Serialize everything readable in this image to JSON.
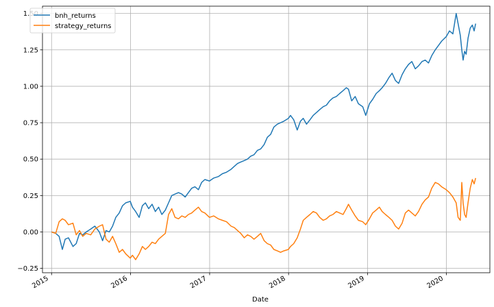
{
  "chart_data": {
    "type": "line",
    "title": "",
    "xlabel": "Date",
    "ylabel": "",
    "xlim": [
      "2014-11-20",
      "2020-07-20"
    ],
    "ylim": [
      -0.28,
      1.55
    ],
    "grid": true,
    "legend_position": "top-left",
    "x_ticks": [
      "2015",
      "2016",
      "2017",
      "2018",
      "2019",
      "2020"
    ],
    "y_ticks": [
      -0.25,
      0.0,
      0.25,
      0.5,
      0.75,
      1.0,
      1.25,
      1.5
    ],
    "y_tick_labels": [
      "−0.25",
      "0.00",
      "0.25",
      "0.50",
      "0.75",
      "1.00",
      "1.25",
      "1.50"
    ],
    "series": [
      {
        "name": "bnh_returns",
        "color": "#1f77b4",
        "points": [
          [
            "2015-01-01",
            0.0
          ],
          [
            "2015-01-20",
            -0.01
          ],
          [
            "2015-02-05",
            -0.03
          ],
          [
            "2015-02-20",
            -0.12
          ],
          [
            "2015-03-05",
            -0.05
          ],
          [
            "2015-03-20",
            -0.04
          ],
          [
            "2015-04-10",
            -0.1
          ],
          [
            "2015-04-25",
            -0.08
          ],
          [
            "2015-05-10",
            -0.01
          ],
          [
            "2015-05-25",
            -0.02
          ],
          [
            "2015-06-10",
            0.0
          ],
          [
            "2015-07-01",
            0.02
          ],
          [
            "2015-07-20",
            0.04
          ],
          [
            "2015-08-10",
            0.0
          ],
          [
            "2015-08-25",
            -0.06
          ],
          [
            "2015-09-10",
            0.01
          ],
          [
            "2015-09-25",
            0.0
          ],
          [
            "2015-10-10",
            0.04
          ],
          [
            "2015-10-25",
            0.1
          ],
          [
            "2015-11-10",
            0.13
          ],
          [
            "2015-11-25",
            0.18
          ],
          [
            "2015-12-10",
            0.2
          ],
          [
            "2015-12-31",
            0.21
          ],
          [
            "2016-01-10",
            0.17
          ],
          [
            "2016-01-25",
            0.14
          ],
          [
            "2016-02-10",
            0.1
          ],
          [
            "2016-02-25",
            0.18
          ],
          [
            "2016-03-10",
            0.2
          ],
          [
            "2016-03-25",
            0.16
          ],
          [
            "2016-04-10",
            0.19
          ],
          [
            "2016-04-25",
            0.14
          ],
          [
            "2016-05-10",
            0.17
          ],
          [
            "2016-05-25",
            0.12
          ],
          [
            "2016-06-10",
            0.15
          ],
          [
            "2016-06-25",
            0.2
          ],
          [
            "2016-07-10",
            0.25
          ],
          [
            "2016-07-25",
            0.26
          ],
          [
            "2016-08-10",
            0.27
          ],
          [
            "2016-08-25",
            0.26
          ],
          [
            "2016-09-10",
            0.24
          ],
          [
            "2016-09-25",
            0.27
          ],
          [
            "2016-10-10",
            0.3
          ],
          [
            "2016-10-25",
            0.31
          ],
          [
            "2016-11-10",
            0.29
          ],
          [
            "2016-11-25",
            0.34
          ],
          [
            "2016-12-10",
            0.36
          ],
          [
            "2016-12-31",
            0.35
          ],
          [
            "2017-01-20",
            0.37
          ],
          [
            "2017-02-10",
            0.38
          ],
          [
            "2017-03-01",
            0.4
          ],
          [
            "2017-03-20",
            0.41
          ],
          [
            "2017-04-10",
            0.43
          ],
          [
            "2017-04-25",
            0.45
          ],
          [
            "2017-05-10",
            0.47
          ],
          [
            "2017-05-25",
            0.48
          ],
          [
            "2017-06-10",
            0.49
          ],
          [
            "2017-06-25",
            0.5
          ],
          [
            "2017-07-10",
            0.52
          ],
          [
            "2017-07-25",
            0.53
          ],
          [
            "2017-08-10",
            0.56
          ],
          [
            "2017-08-25",
            0.57
          ],
          [
            "2017-09-10",
            0.6
          ],
          [
            "2017-09-25",
            0.65
          ],
          [
            "2017-10-10",
            0.67
          ],
          [
            "2017-10-25",
            0.72
          ],
          [
            "2017-11-10",
            0.74
          ],
          [
            "2017-11-25",
            0.75
          ],
          [
            "2017-12-10",
            0.76
          ],
          [
            "2017-12-31",
            0.78
          ],
          [
            "2018-01-10",
            0.8
          ],
          [
            "2018-01-25",
            0.77
          ],
          [
            "2018-02-10",
            0.7
          ],
          [
            "2018-02-25",
            0.76
          ],
          [
            "2018-03-10",
            0.78
          ],
          [
            "2018-03-25",
            0.74
          ],
          [
            "2018-04-10",
            0.77
          ],
          [
            "2018-04-25",
            0.8
          ],
          [
            "2018-05-10",
            0.82
          ],
          [
            "2018-05-25",
            0.84
          ],
          [
            "2018-06-10",
            0.86
          ],
          [
            "2018-06-25",
            0.87
          ],
          [
            "2018-07-10",
            0.9
          ],
          [
            "2018-07-25",
            0.92
          ],
          [
            "2018-08-10",
            0.93
          ],
          [
            "2018-08-25",
            0.95
          ],
          [
            "2018-09-10",
            0.97
          ],
          [
            "2018-09-25",
            0.99
          ],
          [
            "2018-10-05",
            0.98
          ],
          [
            "2018-10-20",
            0.9
          ],
          [
            "2018-11-05",
            0.93
          ],
          [
            "2018-11-20",
            0.88
          ],
          [
            "2018-12-10",
            0.86
          ],
          [
            "2018-12-24",
            0.8
          ],
          [
            "2019-01-10",
            0.88
          ],
          [
            "2019-01-25",
            0.91
          ],
          [
            "2019-02-10",
            0.95
          ],
          [
            "2019-02-25",
            0.97
          ],
          [
            "2019-03-10",
            0.99
          ],
          [
            "2019-03-25",
            1.02
          ],
          [
            "2019-04-10",
            1.06
          ],
          [
            "2019-04-25",
            1.09
          ],
          [
            "2019-05-10",
            1.04
          ],
          [
            "2019-05-25",
            1.02
          ],
          [
            "2019-06-10",
            1.08
          ],
          [
            "2019-06-25",
            1.12
          ],
          [
            "2019-07-10",
            1.15
          ],
          [
            "2019-07-25",
            1.17
          ],
          [
            "2019-08-10",
            1.12
          ],
          [
            "2019-08-25",
            1.14
          ],
          [
            "2019-09-10",
            1.17
          ],
          [
            "2019-09-25",
            1.18
          ],
          [
            "2019-10-10",
            1.16
          ],
          [
            "2019-10-25",
            1.21
          ],
          [
            "2019-11-10",
            1.25
          ],
          [
            "2019-11-25",
            1.28
          ],
          [
            "2019-12-10",
            1.31
          ],
          [
            "2019-12-31",
            1.34
          ],
          [
            "2020-01-15",
            1.38
          ],
          [
            "2020-01-31",
            1.36
          ],
          [
            "2020-02-15",
            1.5
          ],
          [
            "2020-02-24",
            1.43
          ],
          [
            "2020-03-05",
            1.35
          ],
          [
            "2020-03-12",
            1.25
          ],
          [
            "2020-03-18",
            1.18
          ],
          [
            "2020-03-25",
            1.24
          ],
          [
            "2020-04-01",
            1.22
          ],
          [
            "2020-04-10",
            1.33
          ],
          [
            "2020-04-20",
            1.4
          ],
          [
            "2020-04-30",
            1.42
          ],
          [
            "2020-05-08",
            1.38
          ],
          [
            "2020-05-15",
            1.43
          ]
        ]
      },
      {
        "name": "strategy_returns",
        "color": "#ff7f0e",
        "points": [
          [
            "2015-01-01",
            0.0
          ],
          [
            "2015-01-20",
            -0.01
          ],
          [
            "2015-02-05",
            0.07
          ],
          [
            "2015-02-20",
            0.09
          ],
          [
            "2015-03-05",
            0.08
          ],
          [
            "2015-03-20",
            0.05
          ],
          [
            "2015-04-10",
            0.06
          ],
          [
            "2015-04-25",
            -0.02
          ],
          [
            "2015-05-10",
            0.01
          ],
          [
            "2015-05-25",
            -0.03
          ],
          [
            "2015-06-10",
            -0.01
          ],
          [
            "2015-07-01",
            -0.02
          ],
          [
            "2015-07-20",
            0.02
          ],
          [
            "2015-08-10",
            0.04
          ],
          [
            "2015-08-25",
            0.05
          ],
          [
            "2015-09-10",
            -0.05
          ],
          [
            "2015-09-25",
            -0.07
          ],
          [
            "2015-10-10",
            -0.03
          ],
          [
            "2015-10-25",
            -0.08
          ],
          [
            "2015-11-10",
            -0.14
          ],
          [
            "2015-11-25",
            -0.12
          ],
          [
            "2015-12-10",
            -0.15
          ],
          [
            "2015-12-31",
            -0.18
          ],
          [
            "2016-01-10",
            -0.16
          ],
          [
            "2016-01-25",
            -0.19
          ],
          [
            "2016-02-10",
            -0.15
          ],
          [
            "2016-02-25",
            -0.1
          ],
          [
            "2016-03-10",
            -0.12
          ],
          [
            "2016-03-25",
            -0.1
          ],
          [
            "2016-04-10",
            -0.07
          ],
          [
            "2016-04-25",
            -0.08
          ],
          [
            "2016-05-10",
            -0.05
          ],
          [
            "2016-05-25",
            -0.03
          ],
          [
            "2016-06-10",
            -0.01
          ],
          [
            "2016-06-25",
            0.12
          ],
          [
            "2016-07-10",
            0.16
          ],
          [
            "2016-07-25",
            0.1
          ],
          [
            "2016-08-10",
            0.09
          ],
          [
            "2016-08-25",
            0.11
          ],
          [
            "2016-09-10",
            0.1
          ],
          [
            "2016-09-25",
            0.12
          ],
          [
            "2016-10-10",
            0.13
          ],
          [
            "2016-10-25",
            0.15
          ],
          [
            "2016-11-10",
            0.17
          ],
          [
            "2016-11-25",
            0.14
          ],
          [
            "2016-12-10",
            0.13
          ],
          [
            "2016-12-31",
            0.1
          ],
          [
            "2017-01-20",
            0.11
          ],
          [
            "2017-02-10",
            0.09
          ],
          [
            "2017-03-01",
            0.08
          ],
          [
            "2017-03-20",
            0.07
          ],
          [
            "2017-04-10",
            0.04
          ],
          [
            "2017-04-25",
            0.03
          ],
          [
            "2017-05-10",
            0.01
          ],
          [
            "2017-05-25",
            -0.01
          ],
          [
            "2017-06-10",
            -0.04
          ],
          [
            "2017-06-25",
            -0.02
          ],
          [
            "2017-07-10",
            -0.03
          ],
          [
            "2017-07-25",
            -0.05
          ],
          [
            "2017-08-10",
            -0.03
          ],
          [
            "2017-08-25",
            -0.01
          ],
          [
            "2017-09-10",
            -0.06
          ],
          [
            "2017-09-25",
            -0.08
          ],
          [
            "2017-10-10",
            -0.09
          ],
          [
            "2017-10-25",
            -0.12
          ],
          [
            "2017-11-10",
            -0.13
          ],
          [
            "2017-11-25",
            -0.14
          ],
          [
            "2017-12-10",
            -0.13
          ],
          [
            "2017-12-31",
            -0.12
          ],
          [
            "2018-01-10",
            -0.1
          ],
          [
            "2018-01-25",
            -0.08
          ],
          [
            "2018-02-10",
            -0.04
          ],
          [
            "2018-02-25",
            0.02
          ],
          [
            "2018-03-10",
            0.08
          ],
          [
            "2018-03-25",
            0.1
          ],
          [
            "2018-04-10",
            0.12
          ],
          [
            "2018-04-25",
            0.14
          ],
          [
            "2018-05-10",
            0.13
          ],
          [
            "2018-05-25",
            0.1
          ],
          [
            "2018-06-10",
            0.08
          ],
          [
            "2018-06-25",
            0.09
          ],
          [
            "2018-07-10",
            0.11
          ],
          [
            "2018-07-25",
            0.12
          ],
          [
            "2018-08-10",
            0.14
          ],
          [
            "2018-08-25",
            0.13
          ],
          [
            "2018-09-10",
            0.12
          ],
          [
            "2018-09-25",
            0.16
          ],
          [
            "2018-10-05",
            0.19
          ],
          [
            "2018-10-20",
            0.15
          ],
          [
            "2018-11-05",
            0.11
          ],
          [
            "2018-11-20",
            0.08
          ],
          [
            "2018-12-10",
            0.07
          ],
          [
            "2018-12-24",
            0.05
          ],
          [
            "2019-01-10",
            0.09
          ],
          [
            "2019-01-25",
            0.13
          ],
          [
            "2019-02-10",
            0.15
          ],
          [
            "2019-02-25",
            0.17
          ],
          [
            "2019-03-10",
            0.14
          ],
          [
            "2019-03-25",
            0.12
          ],
          [
            "2019-04-10",
            0.1
          ],
          [
            "2019-04-25",
            0.08
          ],
          [
            "2019-05-10",
            0.04
          ],
          [
            "2019-05-25",
            0.02
          ],
          [
            "2019-06-10",
            0.06
          ],
          [
            "2019-06-25",
            0.13
          ],
          [
            "2019-07-10",
            0.15
          ],
          [
            "2019-07-25",
            0.13
          ],
          [
            "2019-08-10",
            0.11
          ],
          [
            "2019-08-25",
            0.14
          ],
          [
            "2019-09-10",
            0.19
          ],
          [
            "2019-09-25",
            0.22
          ],
          [
            "2019-10-10",
            0.24
          ],
          [
            "2019-10-25",
            0.3
          ],
          [
            "2019-11-10",
            0.34
          ],
          [
            "2019-11-25",
            0.33
          ],
          [
            "2019-12-10",
            0.31
          ],
          [
            "2019-12-31",
            0.29
          ],
          [
            "2020-01-15",
            0.27
          ],
          [
            "2020-01-31",
            0.24
          ],
          [
            "2020-02-15",
            0.2
          ],
          [
            "2020-02-24",
            0.1
          ],
          [
            "2020-03-05",
            0.08
          ],
          [
            "2020-03-12",
            0.34
          ],
          [
            "2020-03-18",
            0.2
          ],
          [
            "2020-03-25",
            0.12
          ],
          [
            "2020-04-01",
            0.1
          ],
          [
            "2020-04-10",
            0.2
          ],
          [
            "2020-04-20",
            0.3
          ],
          [
            "2020-04-30",
            0.36
          ],
          [
            "2020-05-08",
            0.33
          ],
          [
            "2020-05-15",
            0.37
          ]
        ]
      }
    ]
  }
}
